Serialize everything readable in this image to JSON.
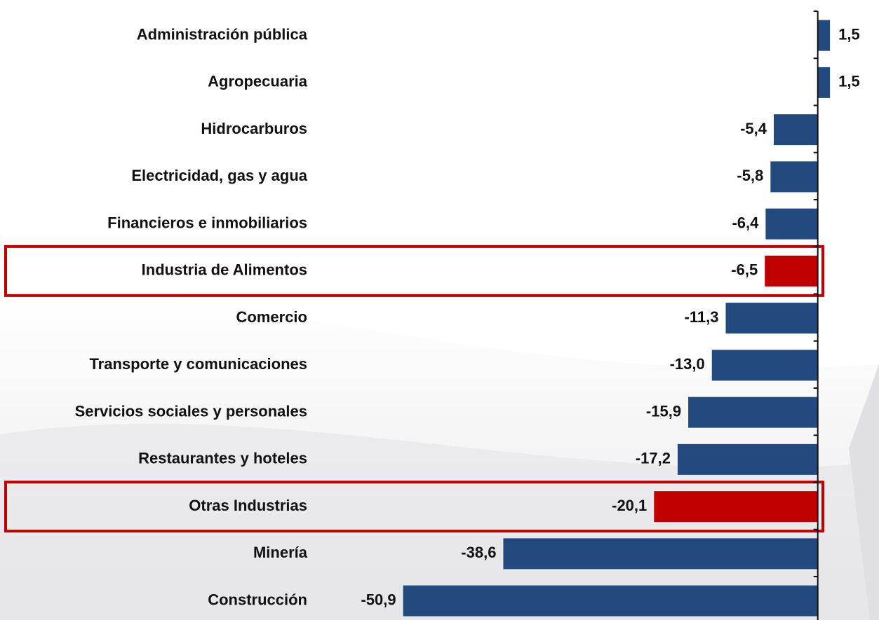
{
  "chart_data": {
    "type": "barh",
    "categories": [
      "Administración pública",
      "Agropecuaria",
      "Hidrocarburos",
      "Electricidad, gas y agua",
      "Financieros e inmobiliarios",
      "Industria de Alimentos",
      "Comercio",
      "Transporte y comunicaciones",
      "Servicios sociales y personales",
      "Restaurantes y hoteles",
      "Otras Industrias",
      "Minería",
      "Construcción"
    ],
    "values": [
      1.5,
      1.5,
      -5.4,
      -5.8,
      -6.4,
      -6.5,
      -11.3,
      -13.0,
      -15.9,
      -17.2,
      -20.1,
      -38.6,
      -50.9
    ],
    "value_labels": [
      "1,5",
      "1,5",
      "-5,4",
      "-5,8",
      "-6,4",
      "-6,5",
      "-11,3",
      "-13,0",
      "-15,9",
      "-17,2",
      "-20,1",
      "-38,6",
      "-50,9"
    ],
    "colors": [
      "#234a7e",
      "#234a7e",
      "#234a7e",
      "#234a7e",
      "#234a7e",
      "#c00000",
      "#234a7e",
      "#234a7e",
      "#234a7e",
      "#234a7e",
      "#c00000",
      "#234a7e",
      "#234a7e"
    ],
    "highlight_color": "#c00000",
    "xlim": [
      -55,
      7
    ]
  }
}
